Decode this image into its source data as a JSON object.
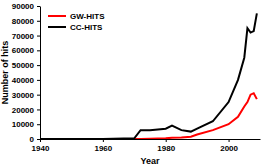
{
  "chart_data": {
    "type": "line",
    "x_label": "Year",
    "y_label": "Number of hits",
    "x": [
      1940,
      1950,
      1960,
      1970,
      1972,
      1975,
      1980,
      1982,
      1985,
      1988,
      1990,
      1995,
      2000,
      2003,
      2005,
      2006,
      2007,
      2008,
      2009
    ],
    "series": [
      {
        "name": "GW-HITS",
        "color": "#ff0000",
        "values": [
          0,
          0,
          0,
          0,
          0,
          200,
          500,
          800,
          1000,
          1500,
          3000,
          6000,
          10000,
          15000,
          22000,
          25000,
          30000,
          31000,
          27000
        ]
      },
      {
        "name": "CC-HITS",
        "color": "#000000",
        "values": [
          0,
          0,
          0,
          500,
          6000,
          6000,
          7000,
          9000,
          6000,
          5000,
          7000,
          12000,
          25000,
          40000,
          55000,
          75000,
          72000,
          73000,
          85000
        ]
      }
    ],
    "xlim": [
      1940,
      2010
    ],
    "xticks": [
      1940,
      1960,
      1980,
      2000
    ],
    "ylim": [
      0,
      90000
    ],
    "yticks": [
      0,
      10000,
      20000,
      30000,
      40000,
      50000,
      60000,
      70000,
      80000,
      90000
    ],
    "grid": false,
    "legend": "upper left"
  }
}
